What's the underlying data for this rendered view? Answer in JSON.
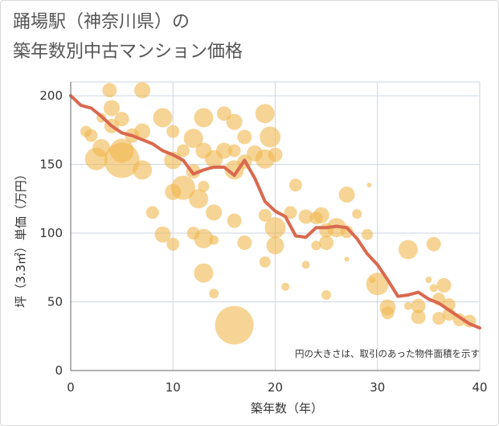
{
  "header": {
    "title_line1": "踊場駅（神奈川県）の",
    "title_line2": "築年数別中古マンション価格"
  },
  "chart_data": {
    "type": "scatter",
    "title": "踊場駅（神奈川県）の築年数別中古マンション価格",
    "xlabel": "築年数（年）",
    "ylabel": "坪（3.3㎡）単価（万円）",
    "xlim": [
      0,
      40
    ],
    "ylim": [
      0,
      210
    ],
    "xticks": [
      "0",
      "10",
      "20",
      "30",
      "40"
    ],
    "yticks": [
      "0",
      "50",
      "100",
      "150",
      "200"
    ],
    "grid": true,
    "note": "円の大きさは、取引のあった物件面積を示す",
    "colors": {
      "bubble": "#f0b84e",
      "line": "#d9694f",
      "grid": "#ccd6e0",
      "axis": "#666666"
    },
    "points": [
      [
        3.8,
        204,
        9
      ],
      [
        7,
        204,
        10
      ],
      [
        4,
        191,
        10
      ],
      [
        9,
        184,
        12
      ],
      [
        5,
        183,
        9
      ],
      [
        16,
        181,
        10
      ],
      [
        15,
        187,
        9
      ],
      [
        19,
        187,
        12
      ],
      [
        13,
        184,
        12
      ],
      [
        3,
        184,
        6
      ],
      [
        4,
        178,
        9
      ],
      [
        7,
        174,
        10
      ],
      [
        2,
        171,
        8
      ],
      [
        6,
        171,
        9
      ],
      [
        1.5,
        174,
        7
      ],
      [
        10,
        174,
        8
      ],
      [
        12,
        169,
        12
      ],
      [
        17,
        170,
        9
      ],
      [
        19.5,
        170,
        13
      ],
      [
        3,
        162,
        11
      ],
      [
        5,
        160,
        15
      ],
      [
        11,
        160,
        8
      ],
      [
        13,
        160,
        10
      ],
      [
        16,
        160,
        8
      ],
      [
        18,
        158,
        10
      ],
      [
        20,
        157,
        9
      ],
      [
        15,
        160,
        10
      ],
      [
        2.5,
        154,
        14
      ],
      [
        5,
        153,
        22
      ],
      [
        7,
        146,
        12
      ],
      [
        10,
        153,
        11
      ],
      [
        14,
        154,
        11
      ],
      [
        17,
        152,
        9
      ],
      [
        19,
        154,
        12
      ],
      [
        12,
        145,
        9
      ],
      [
        16,
        146,
        12
      ],
      [
        10,
        130,
        10
      ],
      [
        11,
        133,
        15
      ],
      [
        12.5,
        125,
        12
      ],
      [
        13,
        134,
        7
      ],
      [
        14,
        115,
        10
      ],
      [
        8,
        115,
        8
      ],
      [
        16,
        109,
        9
      ],
      [
        19,
        113,
        8
      ],
      [
        22,
        135,
        8
      ],
      [
        20,
        104,
        13
      ],
      [
        21.5,
        115,
        8
      ],
      [
        12,
        100,
        8
      ],
      [
        9,
        99,
        10
      ],
      [
        13,
        96,
        12
      ],
      [
        14,
        95,
        6
      ],
      [
        10,
        92,
        8
      ],
      [
        17,
        93,
        9
      ],
      [
        20,
        91,
        11
      ],
      [
        19,
        79,
        7
      ],
      [
        23,
        112,
        9
      ],
      [
        24,
        111,
        8
      ],
      [
        24.5,
        113,
        10
      ],
      [
        26,
        104,
        12
      ],
      [
        25,
        102,
        9
      ],
      [
        27,
        101,
        8
      ],
      [
        28,
        114,
        6
      ],
      [
        27,
        128,
        10
      ],
      [
        29,
        99,
        7
      ],
      [
        29.2,
        135,
        3
      ],
      [
        25,
        93,
        9
      ],
      [
        24,
        91,
        6
      ],
      [
        23,
        77,
        5
      ],
      [
        27,
        81,
        3
      ],
      [
        13,
        71,
        12
      ],
      [
        14,
        56,
        6
      ],
      [
        21,
        61,
        5
      ],
      [
        25,
        55,
        6
      ],
      [
        29.5,
        66,
        4
      ],
      [
        30,
        63,
        14
      ],
      [
        31,
        46,
        10
      ],
      [
        31,
        42,
        8
      ],
      [
        33,
        88,
        12
      ],
      [
        35.5,
        92,
        9
      ],
      [
        35,
        66,
        4
      ],
      [
        35.5,
        60,
        5
      ],
      [
        36.5,
        62,
        9
      ],
      [
        36,
        52,
        8
      ],
      [
        37,
        48,
        8
      ],
      [
        37,
        41,
        8
      ],
      [
        36,
        38,
        8
      ],
      [
        34,
        47,
        9
      ],
      [
        34,
        39,
        9
      ],
      [
        33,
        47,
        5
      ],
      [
        38,
        37,
        8
      ],
      [
        39,
        36,
        8
      ],
      [
        16,
        33,
        24
      ]
    ],
    "series": [
      {
        "x": [
          0,
          1,
          2,
          3,
          4,
          5,
          6,
          7,
          8,
          9,
          10,
          11,
          12,
          13,
          14,
          15,
          16,
          17,
          18,
          19,
          20,
          21,
          22,
          23,
          24,
          25,
          26,
          27,
          28,
          29,
          30,
          31,
          32,
          33,
          34,
          35,
          36,
          37,
          38,
          39,
          40
        ],
        "values": [
          200,
          193,
          191,
          185,
          178,
          173,
          171,
          168,
          165,
          160,
          157,
          153,
          143,
          146,
          148,
          148,
          142,
          153,
          140,
          123,
          116,
          112,
          98,
          97,
          104,
          104,
          105,
          104,
          96,
          85,
          77,
          66,
          54,
          55,
          57,
          52,
          49,
          44,
          39,
          34,
          31
        ]
      }
    ]
  }
}
